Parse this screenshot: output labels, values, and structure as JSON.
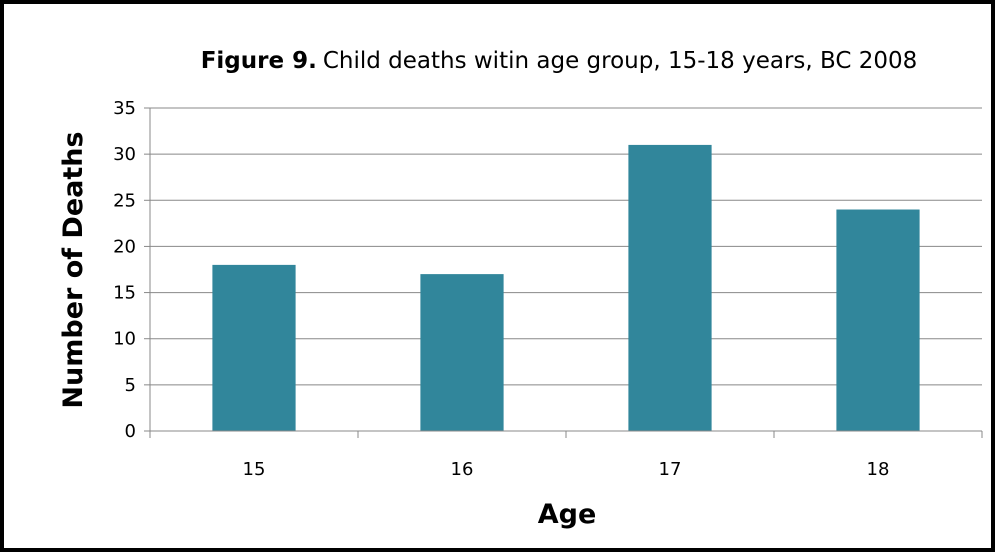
{
  "chart_data": {
    "type": "bar",
    "title_prefix": "Figure 9.",
    "title": "Child deaths witin age group, 15-18 years, BC 2008",
    "categories": [
      "15",
      "16",
      "17",
      "18"
    ],
    "values": [
      18,
      17,
      31,
      24
    ],
    "xlabel": "Age",
    "ylabel": "Number of Deaths",
    "ylim": [
      0,
      35
    ],
    "yticks": [
      0,
      5,
      10,
      15,
      20,
      25,
      30,
      35
    ],
    "grid": true,
    "legend": "none",
    "bar_color": "#31869B",
    "gridline_color": "#888888"
  }
}
